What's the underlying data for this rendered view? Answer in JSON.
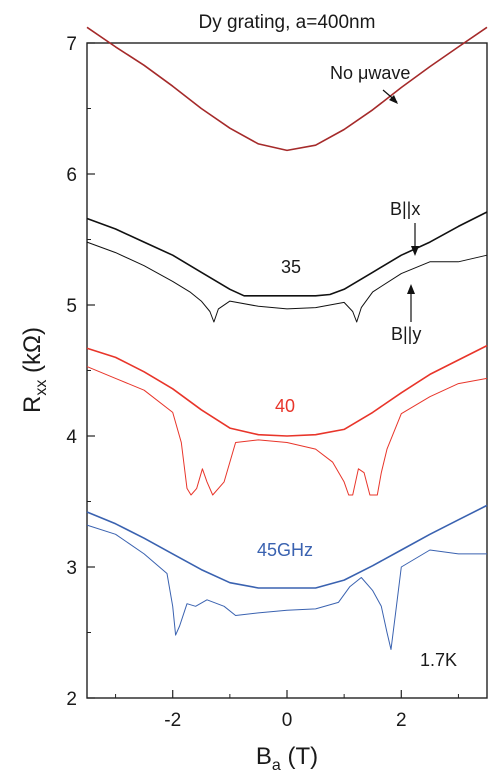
{
  "chart_data": {
    "type": "line",
    "title": "Dy grating, a=400nm",
    "xlabel": "B",
    "xlabel_sub": "a",
    "xlabel_unit": " (T)",
    "ylabel": "R",
    "ylabel_sub": "xx",
    "ylabel_unit": " (kΩ)",
    "xlim": [
      -3.5,
      3.5
    ],
    "ylim": [
      2,
      7
    ],
    "xticks": [
      -2,
      0,
      2
    ],
    "xtick_labels": [
      "-2",
      "0",
      "2"
    ],
    "yticks": [
      2,
      3,
      4,
      5,
      6,
      7
    ],
    "ytick_labels": [
      "2",
      "3",
      "4",
      "5",
      "6",
      "7"
    ],
    "grid": false,
    "colors": {
      "dark_red": "#a52a2a",
      "black": "#111111",
      "red": "#e8352a",
      "blue": "#3a62b0"
    },
    "series": [
      {
        "key": "no_uwave",
        "color": "#a52a2a",
        "x": [
          -3.5,
          -3,
          -2.5,
          -2,
          -1.5,
          -1,
          -0.5,
          0,
          0.5,
          1,
          1.5,
          2,
          2.5,
          3,
          3.5
        ],
        "y": [
          7.12,
          6.97,
          6.83,
          6.67,
          6.5,
          6.35,
          6.23,
          6.18,
          6.22,
          6.34,
          6.49,
          6.66,
          6.82,
          6.97,
          7.12
        ]
      },
      {
        "key": "bx_35",
        "color": "#111111",
        "x": [
          -3.5,
          -3,
          -2.5,
          -2,
          -1.5,
          -1,
          -0.75,
          -0.5,
          0,
          0.5,
          0.75,
          1,
          1.5,
          2,
          2.5,
          3,
          3.5
        ],
        "y": [
          5.66,
          5.58,
          5.48,
          5.38,
          5.25,
          5.12,
          5.07,
          5.07,
          5.07,
          5.07,
          5.08,
          5.12,
          5.25,
          5.38,
          5.48,
          5.6,
          5.71
        ]
      },
      {
        "key": "by_35",
        "color": "#111111",
        "x": [
          -3.5,
          -3,
          -2.5,
          -2,
          -1.7,
          -1.5,
          -1.35,
          -1.28,
          -1.2,
          -1,
          -0.5,
          0,
          0.5,
          1,
          1.15,
          1.22,
          1.3,
          1.5,
          2,
          2.5,
          3,
          3.5
        ],
        "y": [
          5.48,
          5.4,
          5.3,
          5.18,
          5.1,
          5.03,
          4.95,
          4.87,
          4.97,
          5.03,
          4.99,
          4.97,
          4.98,
          5.02,
          4.95,
          4.87,
          4.98,
          5.1,
          5.24,
          5.33,
          5.33,
          5.38
        ]
      },
      {
        "key": "bx_40",
        "color": "#e8352a",
        "x": [
          -3.5,
          -3,
          -2.5,
          -2,
          -1.5,
          -1,
          -0.5,
          0,
          0.5,
          1,
          1.5,
          2,
          2.5,
          3,
          3.5
        ],
        "y": [
          4.67,
          4.6,
          4.49,
          4.36,
          4.2,
          4.06,
          4.01,
          4.0,
          4.01,
          4.05,
          4.18,
          4.33,
          4.47,
          4.58,
          4.69
        ]
      },
      {
        "key": "by_40",
        "color": "#e8352a",
        "x": [
          -3.5,
          -3,
          -2.5,
          -2,
          -1.85,
          -1.75,
          -1.68,
          -1.58,
          -1.48,
          -1.4,
          -1.3,
          -1.1,
          -0.9,
          -0.5,
          0,
          0.5,
          0.8,
          1.0,
          1.08,
          1.15,
          1.25,
          1.35,
          1.45,
          1.58,
          1.65,
          1.75,
          2,
          2.5,
          3,
          3.5
        ],
        "y": [
          4.53,
          4.44,
          4.35,
          4.18,
          3.95,
          3.6,
          3.55,
          3.6,
          3.75,
          3.65,
          3.55,
          3.65,
          3.95,
          3.97,
          3.95,
          3.9,
          3.8,
          3.65,
          3.55,
          3.55,
          3.75,
          3.72,
          3.55,
          3.55,
          3.72,
          3.9,
          4.17,
          4.3,
          4.4,
          4.44
        ]
      },
      {
        "key": "bx_45",
        "color": "#3a62b0",
        "x": [
          -3.5,
          -3,
          -2.5,
          -2,
          -1.5,
          -1,
          -0.5,
          0,
          0.5,
          1,
          1.5,
          2,
          2.5,
          3,
          3.5
        ],
        "y": [
          3.42,
          3.33,
          3.22,
          3.1,
          2.98,
          2.88,
          2.84,
          2.84,
          2.84,
          2.9,
          3.01,
          3.13,
          3.25,
          3.36,
          3.47
        ]
      },
      {
        "key": "by_45",
        "color": "#3a62b0",
        "x": [
          -3.5,
          -3,
          -2.5,
          -2.1,
          -2.0,
          -1.95,
          -1.88,
          -1.75,
          -1.6,
          -1.4,
          -1.1,
          -0.9,
          -0.5,
          0,
          0.5,
          0.9,
          1.1,
          1.3,
          1.5,
          1.65,
          1.75,
          1.82,
          1.9,
          2.0,
          2.5,
          3,
          3.5
        ],
        "y": [
          3.32,
          3.25,
          3.1,
          2.95,
          2.7,
          2.48,
          2.55,
          2.72,
          2.7,
          2.75,
          2.7,
          2.63,
          2.65,
          2.67,
          2.68,
          2.73,
          2.85,
          2.92,
          2.82,
          2.7,
          2.5,
          2.37,
          2.65,
          3.0,
          3.13,
          3.1,
          3.1
        ]
      }
    ],
    "annotations": {
      "no_uwave": "No μwave",
      "bx": "B||x",
      "by": "B||y",
      "f35": "35",
      "f40": "40",
      "f45": "45GHz",
      "temp": "1.7K"
    }
  }
}
